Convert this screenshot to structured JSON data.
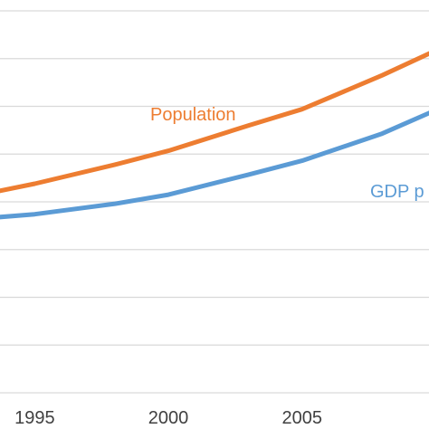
{
  "chart_data": {
    "type": "line",
    "title": "",
    "xlabel": "",
    "ylabel": "",
    "x": [
      1993,
      1995,
      1998,
      2000,
      2003,
      2005,
      2008,
      2010
    ],
    "xticks": [
      "1995",
      "2000",
      "2005"
    ],
    "xlim": [
      1993.7,
      2009.75
    ],
    "ylim": [
      0,
      8
    ],
    "grid": true,
    "gridlines": [
      0,
      1,
      2,
      3,
      4,
      5,
      6,
      7,
      8
    ],
    "series": [
      {
        "name": "Population",
        "color": "#ED7D31",
        "values": [
          4.15,
          4.38,
          4.78,
          5.07,
          5.6,
          5.94,
          6.65,
          7.17
        ]
      },
      {
        "name": "GDP p",
        "color": "#5B9BD5",
        "values": [
          3.65,
          3.74,
          3.96,
          4.15,
          4.57,
          4.86,
          5.43,
          5.92
        ]
      }
    ]
  }
}
